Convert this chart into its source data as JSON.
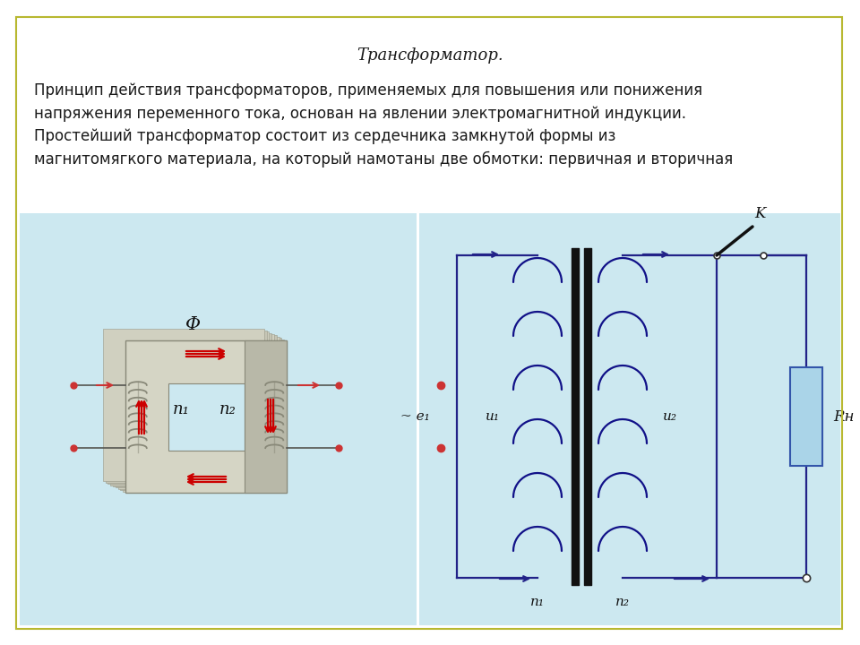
{
  "title": "Трансформатор.",
  "text_block": "Принцип действия трансформаторов, применяемых для повышения или понижения\nнапряжения переменного тока, основан на явлении электромагнитной индукции.\nПростейший трансформатор состоит из сердечника замкнутой формы из\nмагнитомягкого материала, на который намотаны две обмотки: первичная и вторичная",
  "text_fontsize": 12,
  "title_fontsize": 13,
  "bg_color": "#ffffff",
  "panel_bg": "#cce8f0",
  "border_color": "#b8b830",
  "flux_color": "#cc0000",
  "line_color": "#333333",
  "circuit_line": "#222288",
  "core_color": "#b0b0a0",
  "core_dark": "#909088",
  "core_face": "#d0d0c0",
  "core_lamination": "#c0c0b0",
  "coil_wire": "#888880",
  "label_n1": "n₁",
  "label_n2": "n₂",
  "label_phi": "Φ",
  "label_e1": "~ e₁",
  "label_u1": "u₁",
  "label_u2": "u₂",
  "label_K": "K",
  "label_Rk": "Rн",
  "resistor_fill": "#aad4e8",
  "switch_color": "#111111"
}
